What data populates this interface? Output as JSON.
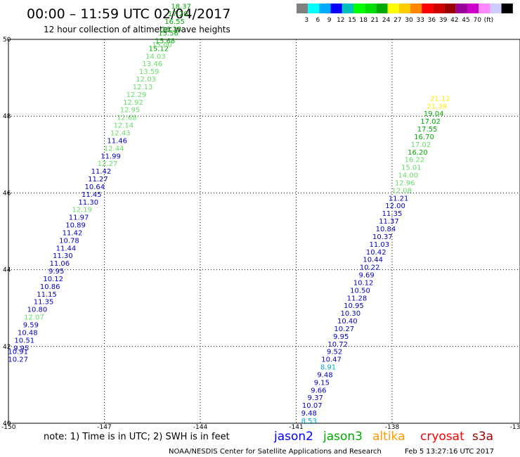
{
  "title": "00:00 – 11:59 UTC 02/04/2017",
  "subtitle": "12 hour collection of altimeter wave heights",
  "colorbar": {
    "colors": [
      "#808080",
      "#00ffff",
      "#00aaff",
      "#0000ff",
      "#00bfbf",
      "#00ff00",
      "#00dd00",
      "#00aa00",
      "#ffff00",
      "#ffcc00",
      "#ff8800",
      "#ff0000",
      "#cc0000",
      "#990000",
      "#990099",
      "#cc00cc",
      "#ff88ff",
      "#ccccff",
      "#000000"
    ],
    "labels": [
      "3",
      "6",
      "9",
      "12",
      "15",
      "18",
      "21",
      "24",
      "27",
      "30",
      "33",
      "36",
      "39",
      "42",
      "45",
      "70",
      "(ft)"
    ]
  },
  "note": "note: 1) Time is in UTC; 2) SWH is in feet",
  "legend": [
    {
      "name": "jason2",
      "color": "#0000ff"
    },
    {
      "name": "jason3",
      "color": "#00aa00"
    },
    {
      "name": "altika",
      "color": "#ff9900"
    },
    {
      "name": "cryosat",
      "color": "#ff0000"
    },
    {
      "name": "s3a",
      "color": "#990000"
    }
  ],
  "credit": "NOAA/NESDIS Center for Satellite Applications and Research",
  "timestamp": "Feb  5 13:27:16 UTC 2017",
  "chart_data": {
    "type": "scatter",
    "xlim": [
      -150,
      -134
    ],
    "ylim": [
      40,
      50
    ],
    "x_tick_labels": [
      "-150",
      "-147",
      "-144",
      "-141",
      "-138",
      "-13"
    ],
    "y_tick_labels": [
      "40",
      "42",
      "44",
      "46",
      "48",
      "50"
    ],
    "grid": true,
    "colors": {
      "jason2_low": "#0000c8",
      "jason3_mid": "#00aa00",
      "jason3_light": "#66dd66",
      "cyan": "#00aacc",
      "yellow": "#ffee00",
      "orange": "#ff9900",
      "darkred": "#990000"
    },
    "points": [
      {
        "x": -149.7,
        "y": 41.6,
        "v": "10.27",
        "c": "jason2_low"
      },
      {
        "x": -149.7,
        "y": 41.8,
        "v": "10.91",
        "c": "jason2_low"
      },
      {
        "x": -149.6,
        "y": 41.9,
        "v": "9.95",
        "c": "jason2_low"
      },
      {
        "x": -149.5,
        "y": 42.1,
        "v": "10.51",
        "c": "jason2_low"
      },
      {
        "x": -149.4,
        "y": 42.3,
        "v": "10.48",
        "c": "jason2_low"
      },
      {
        "x": -149.3,
        "y": 42.5,
        "v": "9.59",
        "c": "jason2_low"
      },
      {
        "x": -149.2,
        "y": 42.7,
        "v": "12.07",
        "c": "jason3_light"
      },
      {
        "x": -149.1,
        "y": 42.9,
        "v": "10.80",
        "c": "jason2_low"
      },
      {
        "x": -148.9,
        "y": 43.1,
        "v": "11.35",
        "c": "jason2_low"
      },
      {
        "x": -148.8,
        "y": 43.3,
        "v": "11.15",
        "c": "jason2_low"
      },
      {
        "x": -148.7,
        "y": 43.5,
        "v": "10.86",
        "c": "jason2_low"
      },
      {
        "x": -148.6,
        "y": 43.7,
        "v": "10.12",
        "c": "jason2_low"
      },
      {
        "x": -148.5,
        "y": 43.9,
        "v": "9.95",
        "c": "jason2_low"
      },
      {
        "x": -148.4,
        "y": 44.1,
        "v": "11.06",
        "c": "jason2_low"
      },
      {
        "x": -148.3,
        "y": 44.3,
        "v": "11.30",
        "c": "jason2_low"
      },
      {
        "x": -148.2,
        "y": 44.5,
        "v": "11.44",
        "c": "jason2_low"
      },
      {
        "x": -148.1,
        "y": 44.7,
        "v": "10.78",
        "c": "jason2_low"
      },
      {
        "x": -148.0,
        "y": 44.9,
        "v": "11.42",
        "c": "jason2_low"
      },
      {
        "x": -147.9,
        "y": 45.1,
        "v": "10.89",
        "c": "jason2_low"
      },
      {
        "x": -147.8,
        "y": 45.3,
        "v": "11.97",
        "c": "jason2_low"
      },
      {
        "x": -147.7,
        "y": 45.5,
        "v": "12.19",
        "c": "jason3_light"
      },
      {
        "x": -147.5,
        "y": 45.7,
        "v": "11.30",
        "c": "jason2_low"
      },
      {
        "x": -147.4,
        "y": 45.9,
        "v": "11.45",
        "c": "jason2_low"
      },
      {
        "x": -147.3,
        "y": 46.1,
        "v": "10.64",
        "c": "jason2_low"
      },
      {
        "x": -147.2,
        "y": 46.3,
        "v": "11.27",
        "c": "jason2_low"
      },
      {
        "x": -147.1,
        "y": 46.5,
        "v": "11.42",
        "c": "jason2_low"
      },
      {
        "x": -146.9,
        "y": 46.7,
        "v": "12.27",
        "c": "jason3_light"
      },
      {
        "x": -146.8,
        "y": 46.9,
        "v": "11.99",
        "c": "jason2_low"
      },
      {
        "x": -146.7,
        "y": 47.1,
        "v": "12.44",
        "c": "jason3_light"
      },
      {
        "x": -146.6,
        "y": 47.3,
        "v": "11.46",
        "c": "jason2_low"
      },
      {
        "x": -146.5,
        "y": 47.5,
        "v": "12.43",
        "c": "jason3_light"
      },
      {
        "x": -146.4,
        "y": 47.7,
        "v": "12.14",
        "c": "jason3_light"
      },
      {
        "x": -146.3,
        "y": 47.9,
        "v": "12.68",
        "c": "jason3_light"
      },
      {
        "x": -146.2,
        "y": 48.1,
        "v": "12.95",
        "c": "jason3_light"
      },
      {
        "x": -146.1,
        "y": 48.3,
        "v": "12.92",
        "c": "jason3_light"
      },
      {
        "x": -146.0,
        "y": 48.5,
        "v": "12.29",
        "c": "jason3_light"
      },
      {
        "x": -145.8,
        "y": 48.7,
        "v": "12.13",
        "c": "jason3_light"
      },
      {
        "x": -145.7,
        "y": 48.9,
        "v": "12.03",
        "c": "jason3_light"
      },
      {
        "x": -145.6,
        "y": 49.1,
        "v": "13.59",
        "c": "jason3_light"
      },
      {
        "x": -145.5,
        "y": 49.3,
        "v": "13.46",
        "c": "jason3_light"
      },
      {
        "x": -145.4,
        "y": 49.5,
        "v": "14.03",
        "c": "jason3_light"
      },
      {
        "x": -145.3,
        "y": 49.7,
        "v": "15.12",
        "c": "jason3_mid"
      },
      {
        "x": -145.2,
        "y": 49.8,
        "v": "15.00",
        "c": "jason3_light"
      },
      {
        "x": -145.1,
        "y": 49.9,
        "v": "15.68",
        "c": "jason3_mid"
      },
      {
        "x": -145.0,
        "y": 50.1,
        "v": "15.56",
        "c": "jason3_mid"
      },
      {
        "x": -144.9,
        "y": 50.2,
        "v": "16.25",
        "c": "jason3_mid"
      },
      {
        "x": -144.8,
        "y": 50.4,
        "v": "16.55",
        "c": "jason3_mid"
      },
      {
        "x": -144.7,
        "y": 50.6,
        "v": "17.20",
        "c": "jason3_mid"
      },
      {
        "x": -144.6,
        "y": 50.8,
        "v": "18.37",
        "c": "jason3_mid"
      },
      {
        "x": -140.6,
        "y": 40.0,
        "v": "8.53",
        "c": "cyan"
      },
      {
        "x": -140.6,
        "y": 40.2,
        "v": "9.48",
        "c": "jason2_low"
      },
      {
        "x": -140.5,
        "y": 40.4,
        "v": "10.07",
        "c": "jason2_low"
      },
      {
        "x": -140.4,
        "y": 40.6,
        "v": "9.37",
        "c": "jason2_low"
      },
      {
        "x": -140.3,
        "y": 40.8,
        "v": "9.66",
        "c": "jason2_low"
      },
      {
        "x": -140.2,
        "y": 41.0,
        "v": "9.15",
        "c": "jason2_low"
      },
      {
        "x": -140.1,
        "y": 41.2,
        "v": "9.48",
        "c": "jason2_low"
      },
      {
        "x": -140.0,
        "y": 41.4,
        "v": "8.91",
        "c": "cyan"
      },
      {
        "x": -139.9,
        "y": 41.6,
        "v": "10.47",
        "c": "jason2_low"
      },
      {
        "x": -139.8,
        "y": 41.8,
        "v": "9.52",
        "c": "jason2_low"
      },
      {
        "x": -139.7,
        "y": 42.0,
        "v": "10.72",
        "c": "jason2_low"
      },
      {
        "x": -139.6,
        "y": 42.2,
        "v": "9.95",
        "c": "jason2_low"
      },
      {
        "x": -139.5,
        "y": 42.4,
        "v": "10.27",
        "c": "jason2_low"
      },
      {
        "x": -139.4,
        "y": 42.6,
        "v": "10.40",
        "c": "jason2_low"
      },
      {
        "x": -139.3,
        "y": 42.8,
        "v": "10.30",
        "c": "jason2_low"
      },
      {
        "x": -139.2,
        "y": 43.0,
        "v": "10.95",
        "c": "jason2_low"
      },
      {
        "x": -139.1,
        "y": 43.2,
        "v": "11.28",
        "c": "jason2_low"
      },
      {
        "x": -139.0,
        "y": 43.4,
        "v": "10.50",
        "c": "jason2_low"
      },
      {
        "x": -138.9,
        "y": 43.6,
        "v": "10.12",
        "c": "jason2_low"
      },
      {
        "x": -138.8,
        "y": 43.8,
        "v": "9.69",
        "c": "jason2_low"
      },
      {
        "x": -138.7,
        "y": 44.0,
        "v": "10.22",
        "c": "jason2_low"
      },
      {
        "x": -138.6,
        "y": 44.2,
        "v": "10.44",
        "c": "jason2_low"
      },
      {
        "x": -138.5,
        "y": 44.4,
        "v": "10.42",
        "c": "jason2_low"
      },
      {
        "x": -138.4,
        "y": 44.6,
        "v": "11.03",
        "c": "jason2_low"
      },
      {
        "x": -138.3,
        "y": 44.8,
        "v": "10.37",
        "c": "jason2_low"
      },
      {
        "x": -138.2,
        "y": 45.0,
        "v": "10.84",
        "c": "jason2_low"
      },
      {
        "x": -138.1,
        "y": 45.2,
        "v": "11.37",
        "c": "jason2_low"
      },
      {
        "x": -138.0,
        "y": 45.4,
        "v": "11.35",
        "c": "jason2_low"
      },
      {
        "x": -137.9,
        "y": 45.6,
        "v": "12.00",
        "c": "jason2_low"
      },
      {
        "x": -137.8,
        "y": 45.8,
        "v": "11.21",
        "c": "jason2_low"
      },
      {
        "x": -137.7,
        "y": 46.0,
        "v": "12.08",
        "c": "jason3_light"
      },
      {
        "x": -137.6,
        "y": 46.2,
        "v": "12.96",
        "c": "jason3_light"
      },
      {
        "x": -137.5,
        "y": 46.4,
        "v": "14.00",
        "c": "jason3_light"
      },
      {
        "x": -137.4,
        "y": 46.6,
        "v": "15.01",
        "c": "jason3_light"
      },
      {
        "x": -137.3,
        "y": 46.8,
        "v": "16.22",
        "c": "jason3_light"
      },
      {
        "x": -137.2,
        "y": 47.0,
        "v": "16.20",
        "c": "jason3_mid"
      },
      {
        "x": -137.1,
        "y": 47.2,
        "v": "17.02",
        "c": "jason3_light"
      },
      {
        "x": -137.0,
        "y": 47.4,
        "v": "16.70",
        "c": "jason3_mid"
      },
      {
        "x": -136.9,
        "y": 47.6,
        "v": "17.55",
        "c": "jason3_mid"
      },
      {
        "x": -136.8,
        "y": 47.8,
        "v": "17.02",
        "c": "jason3_mid"
      },
      {
        "x": -136.7,
        "y": 48.0,
        "v": "19.04",
        "c": "jason3_mid"
      },
      {
        "x": -136.6,
        "y": 48.2,
        "v": "21.39",
        "c": "yellow"
      },
      {
        "x": -136.5,
        "y": 48.4,
        "v": "21.12",
        "c": "yellow"
      }
    ]
  }
}
